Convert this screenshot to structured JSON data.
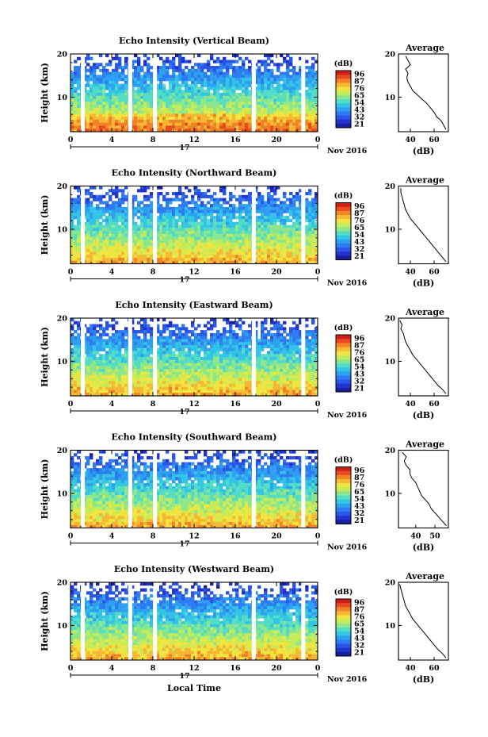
{
  "colorbar_unit": "(dB)",
  "colorbar_ticks": [
    "96",
    "87",
    "76",
    "65",
    "54",
    "43",
    "32",
    "21"
  ],
  "colorbar_ticks_alt": [
    "96",
    "87",
    "76",
    "65",
    "54",
    "43",
    "32",
    "21"
  ],
  "colormap": [
    "#1a1f9c",
    "#2233cc",
    "#2a55e6",
    "#2f7cf2",
    "#2fa0f0",
    "#33c4e6",
    "#55dcc4",
    "#8ee68c",
    "#c4ec5a",
    "#f0e440",
    "#f6b834",
    "#f08228",
    "#e8491e",
    "#cc1f1a"
  ],
  "chart_data": [
    {
      "type": "heatmap",
      "title": "Echo Intensity (Vertical Beam)",
      "ylabel": "Height (km)",
      "x_ticks": [
        "0",
        "4",
        "8",
        "12",
        "16",
        "20",
        "0"
      ],
      "y_ticks": [
        "20",
        "10"
      ],
      "date_label": "17",
      "month_label": "Nov 2016",
      "xlim": [
        0,
        24
      ],
      "ylim": [
        2,
        20
      ],
      "gaps_hours": [
        1.2,
        5.8,
        8.2,
        17.8,
        22.6
      ],
      "profile": {
        "title": "Average",
        "xlabel": "(dB)",
        "x_ticks": [
          "40",
          "60"
        ],
        "y_ticks": [
          "20",
          "10"
        ],
        "xlim": [
          30,
          72
        ],
        "ylim": [
          2,
          20
        ],
        "height_km": [
          2.5,
          3.5,
          4.5,
          5.5,
          6.5,
          7.5,
          8.5,
          9.5,
          10.5,
          11.5,
          12.5,
          13.5,
          14.5,
          15.5,
          16.5,
          17.5,
          18.5,
          19.5
        ],
        "value_db": [
          70,
          68,
          66,
          62,
          60,
          57,
          54,
          50,
          46,
          42,
          40,
          38,
          37,
          38,
          36,
          40,
          38,
          36
        ]
      }
    },
    {
      "type": "heatmap",
      "title": "Echo Intensity (Northward Beam)",
      "ylabel": "Height (km)",
      "x_ticks": [
        "0",
        "4",
        "8",
        "12",
        "16",
        "20",
        "0"
      ],
      "y_ticks": [
        "20",
        "10"
      ],
      "date_label": "17",
      "month_label": "Nov 2016",
      "xlim": [
        0,
        24
      ],
      "ylim": [
        2,
        20
      ],
      "gaps_hours": [
        1.2,
        5.8,
        8.2,
        17.8,
        22.6
      ],
      "profile": {
        "title": "Average",
        "xlabel": "(dB)",
        "x_ticks": [
          "40",
          "60"
        ],
        "y_ticks": [
          "20",
          "10"
        ],
        "xlim": [
          30,
          72
        ],
        "ylim": [
          2,
          20
        ],
        "height_km": [
          2.5,
          3.5,
          4.5,
          5.5,
          6.5,
          7.5,
          8.5,
          9.5,
          10.5,
          11.5,
          12.5,
          13.5,
          14.5,
          15.5,
          16.5,
          17.5,
          18.5,
          19.5
        ],
        "value_db": [
          70,
          67,
          64,
          61,
          58,
          55,
          52,
          49,
          46,
          43,
          40,
          38,
          36,
          35,
          34,
          33,
          32,
          32
        ]
      }
    },
    {
      "type": "heatmap",
      "title": "Echo Intensity (Eastward Beam)",
      "ylabel": "Height (km)",
      "x_ticks": [
        "0",
        "4",
        "8",
        "12",
        "16",
        "20",
        "0"
      ],
      "y_ticks": [
        "20",
        "10"
      ],
      "date_label": "17",
      "month_label": "Nov 2016",
      "xlim": [
        0,
        24
      ],
      "ylim": [
        2,
        20
      ],
      "gaps_hours": [
        1.2,
        5.8,
        8.2,
        17.8,
        22.6
      ],
      "colorbar_ticks": [
        "96",
        "87",
        "76",
        "65",
        "54",
        "43",
        "32",
        "21"
      ],
      "profile": {
        "title": "Average",
        "xlabel": "(dB)",
        "x_ticks": [
          "40",
          "60"
        ],
        "y_ticks": [
          "20",
          "10"
        ],
        "xlim": [
          30,
          72
        ],
        "ylim": [
          2,
          20
        ],
        "height_km": [
          2.5,
          3.5,
          4.5,
          5.5,
          6.5,
          7.5,
          8.5,
          9.5,
          10.5,
          11.5,
          12.5,
          13.5,
          14.5,
          15.5,
          16.5,
          17.5,
          18.5,
          19.5
        ],
        "value_db": [
          70,
          67,
          63,
          60,
          57,
          54,
          51,
          48,
          45,
          42,
          40,
          38,
          36,
          35,
          34,
          32,
          33,
          31
        ]
      }
    },
    {
      "type": "heatmap",
      "title": "Echo Intensity (Southward Beam)",
      "ylabel": "Height (km)",
      "x_ticks": [
        "0",
        "4",
        "8",
        "12",
        "16",
        "20",
        "0"
      ],
      "y_ticks": [
        "20",
        "10"
      ],
      "date_label": "17",
      "month_label": "Nov 2016",
      "xlim": [
        0,
        24
      ],
      "ylim": [
        2,
        20
      ],
      "gaps_hours": [
        1.2,
        5.8,
        8.2,
        17.8,
        22.6
      ],
      "profile": {
        "title": "Average",
        "xlabel": "(dB)",
        "x_ticks": [
          "40",
          "50"
        ],
        "y_ticks": [
          "20",
          "10"
        ],
        "xlim": [
          31,
          57
        ],
        "ylim": [
          2,
          20
        ],
        "height_km": [
          2.5,
          3.5,
          4.5,
          5.5,
          6.5,
          7.5,
          8.5,
          9.5,
          10.5,
          11.5,
          12.5,
          13.5,
          14.5,
          15.5,
          16.5,
          17.5,
          18.5,
          19.5
        ],
        "value_db": [
          56,
          54,
          52,
          50,
          48,
          47,
          45,
          43,
          42,
          41,
          40,
          38,
          37,
          37,
          35,
          34,
          35,
          33
        ]
      }
    },
    {
      "type": "heatmap",
      "title": "Echo Intensity (Westward Beam)",
      "ylabel": "Height (km)",
      "x_ticks": [
        "0",
        "4",
        "8",
        "12",
        "16",
        "20",
        "0"
      ],
      "y_ticks": [
        "20",
        "10"
      ],
      "date_label": "17",
      "month_label": "Nov 2016",
      "xlabel": "Local Time",
      "xlim": [
        0,
        24
      ],
      "ylim": [
        2,
        20
      ],
      "gaps_hours": [
        1.2,
        5.8,
        8.2,
        17.8,
        22.6
      ],
      "profile": {
        "title": "Average",
        "xlabel": "(dB)",
        "x_ticks": [
          "40",
          "60"
        ],
        "y_ticks": [
          "20",
          "10"
        ],
        "xlim": [
          30,
          72
        ],
        "ylim": [
          2,
          20
        ],
        "height_km": [
          2.5,
          3.5,
          4.5,
          5.5,
          6.5,
          7.5,
          8.5,
          9.5,
          10.5,
          11.5,
          12.5,
          13.5,
          14.5,
          15.5,
          16.5,
          17.5,
          18.5,
          19.5
        ],
        "value_db": [
          70,
          67,
          63,
          60,
          57,
          54,
          51,
          48,
          45,
          42,
          40,
          38,
          36,
          35,
          34,
          33,
          32,
          31
        ]
      }
    }
  ]
}
